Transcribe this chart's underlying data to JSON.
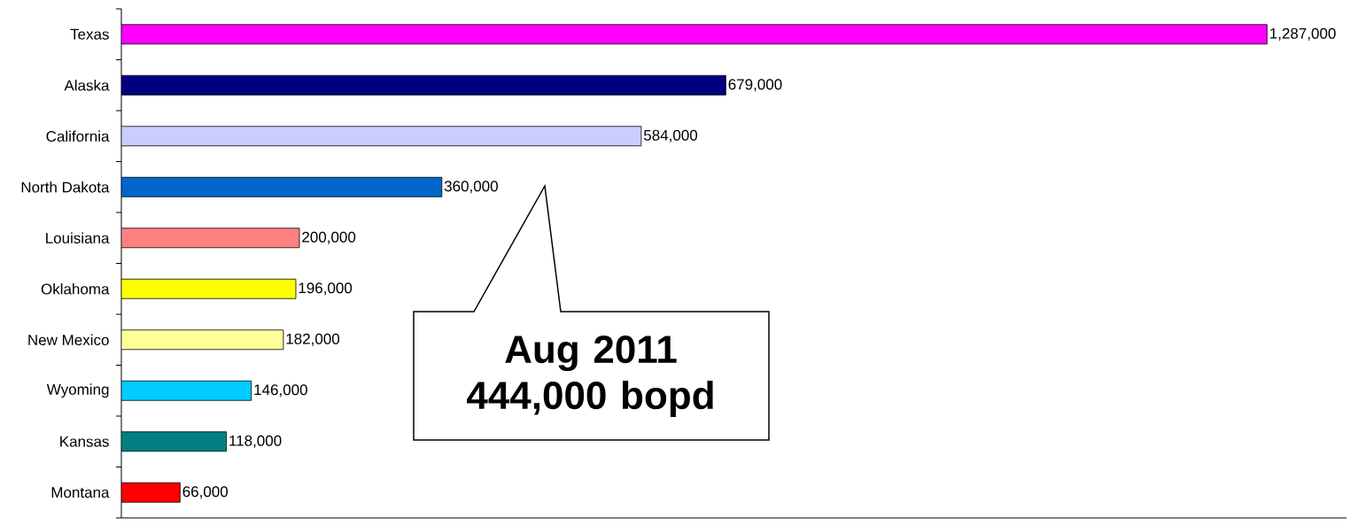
{
  "chart_data": {
    "type": "bar",
    "orientation": "horizontal",
    "categories": [
      "Texas",
      "Alaska",
      "California",
      "North Dakota",
      "Louisiana",
      "Oklahoma",
      "New Mexico",
      "Wyoming",
      "Kansas",
      "Montana"
    ],
    "values": [
      1287000,
      679000,
      584000,
      360000,
      200000,
      196000,
      182000,
      146000,
      118000,
      66000
    ],
    "value_labels": [
      "1,287,000",
      "679,000",
      "584,000",
      "360,000",
      "200,000",
      "196,000",
      "182,000",
      "146,000",
      "118,000",
      "66,000"
    ],
    "colors": [
      "#ff00ff",
      "#000080",
      "#ccccff",
      "#0066cc",
      "#ff8080",
      "#ffff00",
      "#ffff99",
      "#00ccff",
      "#008080",
      "#ff0000"
    ],
    "tick_labels": "y",
    "annotations": [
      "Aug 2011 444,000 bopd"
    ]
  }
}
